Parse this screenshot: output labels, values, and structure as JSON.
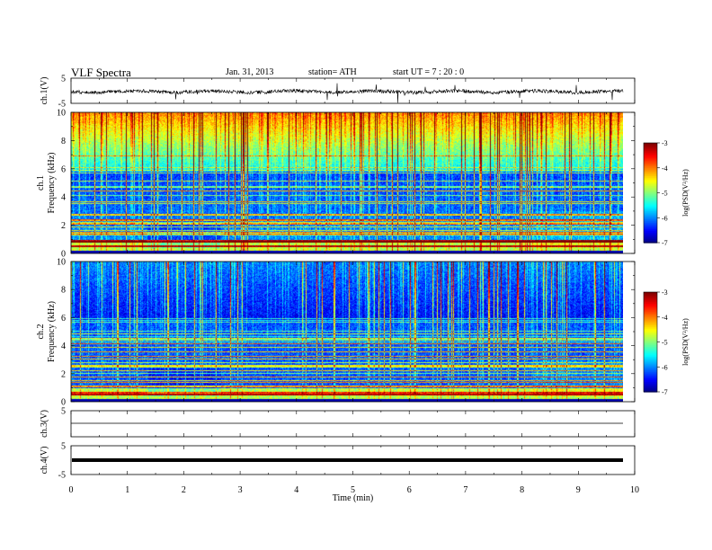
{
  "header": {
    "title": "VLF  Spectra",
    "date": "Jan. 31, 2013",
    "station": "station= ATH",
    "start": "start  UT  =    7  : 20 : 0"
  },
  "chart_data": [
    {
      "type": "line",
      "name": "ch1-waveform",
      "ylabel": "ch.1(V)",
      "ylim": [
        -5,
        5
      ],
      "yticks": [
        5,
        -5
      ],
      "xlim": [
        0,
        10
      ]
    },
    {
      "type": "heatmap",
      "name": "ch1-spectrogram",
      "ylabel_top": "ch.1",
      "ylabel": "Frequency (kHz)",
      "ylim": [
        0,
        10
      ],
      "yticks": [
        0,
        2,
        4,
        6,
        8,
        10
      ],
      "xlim": [
        0,
        9.8
      ],
      "colorbar": {
        "label": "log(PSD(V²/Hz)",
        "range": [
          -7,
          -3
        ],
        "ticks": [
          -3,
          -4,
          -5,
          -6,
          -7
        ]
      }
    },
    {
      "type": "heatmap",
      "name": "ch2-spectrogram",
      "ylabel_top": "ch.2",
      "ylabel": "Frequency (kHz)",
      "ylim": [
        0,
        10
      ],
      "yticks": [
        0,
        2,
        4,
        6,
        8,
        10
      ],
      "xlim": [
        0,
        9.8
      ],
      "colorbar": {
        "label": "log(PSD(V²/Hz)",
        "range": [
          -7,
          -3
        ],
        "ticks": [
          -3,
          -4,
          -5,
          -6,
          -7
        ]
      }
    },
    {
      "type": "line",
      "name": "ch3-waveform",
      "ylabel": "ch.3(V)",
      "ylim": [
        -5,
        5
      ],
      "yticks": [
        5
      ],
      "xlim": [
        0,
        10
      ]
    },
    {
      "type": "line",
      "name": "ch4-waveform",
      "ylabel": "ch.4(V)",
      "ylim": [
        -5,
        5
      ],
      "yticks": [
        5,
        -5
      ],
      "xlim": [
        0,
        10
      ],
      "xlabel": "Time  (min)",
      "xticks": [
        0,
        1,
        2,
        3,
        4,
        5,
        6,
        7,
        8,
        9,
        10
      ]
    }
  ]
}
